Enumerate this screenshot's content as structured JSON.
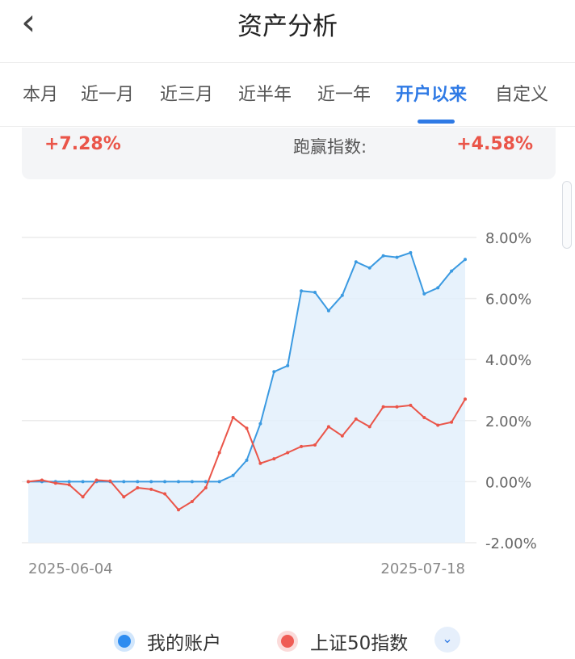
{
  "header": {
    "title": "资产分析",
    "back_icon": "chevron-left-icon"
  },
  "tabs": [
    {
      "label": "本月"
    },
    {
      "label": "近一月"
    },
    {
      "label": "近三月"
    },
    {
      "label": "近半年"
    },
    {
      "label": "近一年"
    },
    {
      "label": "开户以来",
      "active": true
    },
    {
      "label": "自定义"
    }
  ],
  "summary": {
    "account_return": "+7.28%",
    "beat_label": "跑赢指数:",
    "beat_value": "+4.58%"
  },
  "colors": {
    "accent": "#2f7ae5",
    "account_line": "#3b9ae1",
    "index_line": "#ea5549",
    "positive": "#ea5549"
  },
  "chart_data": {
    "type": "line",
    "x": [
      "2025-06-04",
      "2025-06-05",
      "2025-06-06",
      "2025-06-09",
      "2025-06-10",
      "2025-06-11",
      "2025-06-12",
      "2025-06-13",
      "2025-06-16",
      "2025-06-17",
      "2025-06-18",
      "2025-06-19",
      "2025-06-20",
      "2025-06-23",
      "2025-06-24",
      "2025-06-25",
      "2025-06-26",
      "2025-06-27",
      "2025-06-30",
      "2025-07-01",
      "2025-07-02",
      "2025-07-03",
      "2025-07-04",
      "2025-07-07",
      "2025-07-08",
      "2025-07-09",
      "2025-07-10",
      "2025-07-11",
      "2025-07-14",
      "2025-07-15",
      "2025-07-16",
      "2025-07-17",
      "2025-07-18"
    ],
    "xtick_labels": [
      "2025-06-04",
      "2025-07-18"
    ],
    "series": [
      {
        "name": "我的账户",
        "values": [
          0.0,
          0.0,
          0.0,
          0.0,
          0.0,
          0.0,
          0.0,
          0.0,
          0.0,
          0.0,
          0.0,
          0.0,
          0.0,
          0.0,
          0.0,
          0.2,
          0.7,
          1.9,
          3.6,
          3.8,
          6.25,
          6.2,
          5.6,
          6.1,
          7.2,
          7.0,
          7.4,
          7.35,
          7.5,
          6.15,
          6.35,
          6.9,
          7.28
        ]
      },
      {
        "name": "上证50指数",
        "values": [
          0.0,
          0.05,
          -0.05,
          -0.1,
          -0.5,
          0.05,
          0.02,
          -0.5,
          -0.2,
          -0.25,
          -0.4,
          -0.92,
          -0.65,
          -0.2,
          0.95,
          2.1,
          1.75,
          0.6,
          0.75,
          0.95,
          1.15,
          1.2,
          1.8,
          1.5,
          2.05,
          1.8,
          2.45,
          2.45,
          2.5,
          2.1,
          1.85,
          1.95,
          2.7
        ]
      }
    ],
    "ylim": [
      -2,
      8
    ],
    "yticks": [
      "8.00%",
      "6.00%",
      "4.00%",
      "2.00%",
      "0.00%",
      "-2.00%"
    ],
    "grid": true,
    "legend_position": "bottom"
  }
}
